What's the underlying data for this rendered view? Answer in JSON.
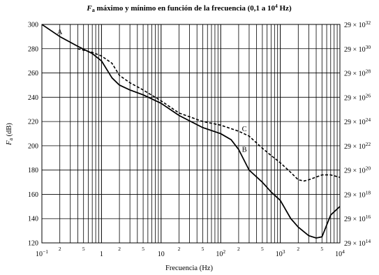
{
  "chart_data": {
    "type": "line",
    "title": "F_a máximo y mínimo en función de la frecuencia (0,1 a 10⁴ Hz)",
    "title_parts": {
      "symbol": "F",
      "subscript": "a",
      "rest": " máximo y mínimo en función de la frecuencia (0,1 a 10",
      "sup": "4",
      "tail": " Hz)"
    },
    "xlabel": "Frecuencia (Hz)",
    "ylabel": {
      "symbol": "F",
      "subscript": "a",
      "unit": " (dB)"
    },
    "x_scale": "log",
    "xlim": [
      0.1,
      10000
    ],
    "ylim": [
      120,
      300
    ],
    "grid": true,
    "x_ticks_major": [
      {
        "value": 0.1,
        "base": "10",
        "sup": "−1"
      },
      {
        "value": 1,
        "base": "1",
        "sup": ""
      },
      {
        "value": 10,
        "base": "10",
        "sup": ""
      },
      {
        "value": 100,
        "base": "10",
        "sup": "2"
      },
      {
        "value": 1000,
        "base": "10",
        "sup": "3"
      },
      {
        "value": 10000,
        "base": "10",
        "sup": "4"
      }
    ],
    "x_ticks_minor": [
      {
        "value": 0.2,
        "label": "2"
      },
      {
        "value": 0.5,
        "label": "5"
      },
      {
        "value": 2,
        "label": "2"
      },
      {
        "value": 5,
        "label": "5"
      },
      {
        "value": 20,
        "label": "2"
      },
      {
        "value": 50,
        "label": "5"
      },
      {
        "value": 200,
        "label": "2"
      },
      {
        "value": 500,
        "label": "5"
      },
      {
        "value": 2000,
        "label": "2"
      },
      {
        "value": 5000,
        "label": "5"
      }
    ],
    "y_ticks_left": [
      "120",
      "140",
      "160",
      "180",
      "200",
      "220",
      "240",
      "260",
      "280",
      "300"
    ],
    "y_ticks_right": [
      {
        "value": 120,
        "base": "29 × 10",
        "sup": "14"
      },
      {
        "value": 140,
        "base": "29 × 10",
        "sup": "16"
      },
      {
        "value": 160,
        "base": "29 × 10",
        "sup": "18"
      },
      {
        "value": 180,
        "base": "29 × 10",
        "sup": "20"
      },
      {
        "value": 200,
        "base": "29 × 10",
        "sup": "22"
      },
      {
        "value": 220,
        "base": "29 × 10",
        "sup": "24"
      },
      {
        "value": 240,
        "base": "29 × 10",
        "sup": "26"
      },
      {
        "value": 260,
        "base": "29 × 10",
        "sup": "28"
      },
      {
        "value": 280,
        "base": "29 × 10",
        "sup": "30"
      },
      {
        "value": 300,
        "base": "29 × 10",
        "sup": "32"
      }
    ],
    "series": [
      {
        "name": "A",
        "style": "solid",
        "color": "#000000",
        "x": [
          0.1,
          0.2,
          0.4,
          0.7,
          1,
          1.5,
          2,
          3,
          5,
          10,
          20,
          50,
          100,
          150,
          200,
          300,
          500,
          700,
          1000,
          1500,
          2000,
          3000,
          4000,
          5000,
          7000,
          10000
        ],
        "y": [
          300,
          290,
          282,
          276,
          270,
          256,
          250,
          246,
          242,
          235,
          225,
          215,
          210,
          205,
          197,
          180,
          170,
          162,
          155,
          140,
          133,
          126,
          124,
          125,
          143,
          150
        ]
      },
      {
        "name": "B",
        "style": "solid",
        "color": "#000000",
        "x": [
          0.1,
          0.2,
          0.4,
          0.7,
          1,
          1.5,
          2,
          3,
          5,
          10,
          20,
          50,
          100,
          150,
          200,
          300,
          500,
          700,
          1000,
          1500,
          2000,
          3000,
          4000,
          5000,
          7000,
          10000
        ],
        "y": [
          300,
          290,
          282,
          276,
          270,
          256,
          250,
          246,
          242,
          235,
          225,
          215,
          210,
          205,
          197,
          180,
          170,
          162,
          155,
          140,
          133,
          126,
          124,
          125,
          143,
          150
        ]
      },
      {
        "name": "C",
        "style": "dashed",
        "color": "#000000",
        "x": [
          0.4,
          0.7,
          1,
          1.5,
          2,
          3,
          5,
          10,
          20,
          50,
          100,
          200,
          300,
          500,
          700,
          1000,
          1500,
          2000,
          2500,
          3000,
          5000,
          7000,
          10000
        ],
        "y": [
          280,
          277,
          274,
          268,
          258,
          252,
          246,
          237,
          227,
          220,
          217,
          212,
          208,
          198,
          192,
          186,
          178,
          172,
          171,
          172,
          176,
          176,
          174
        ]
      }
    ],
    "annotations": [
      {
        "text": "A",
        "x": 0.2,
        "y": 292
      },
      {
        "text": "C",
        "x": 250,
        "y": 212
      },
      {
        "text": "B",
        "x": 250,
        "y": 195
      }
    ]
  }
}
